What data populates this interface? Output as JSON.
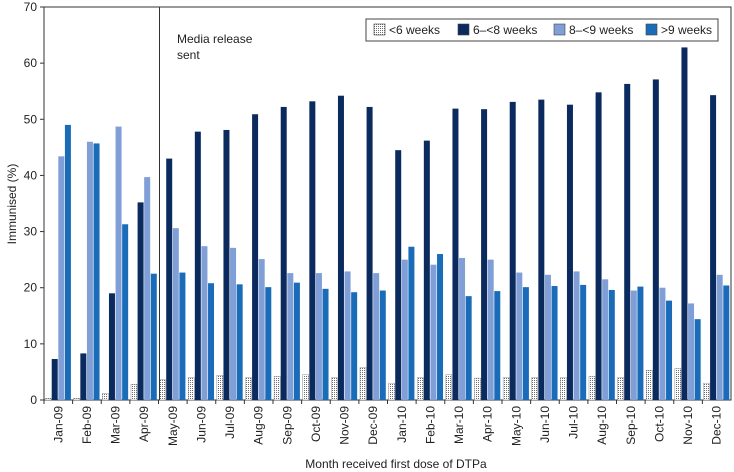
{
  "chart_data": {
    "type": "bar",
    "ylabel": "Immunised (%)",
    "xlabel": "Month received first dose of DTPa",
    "ylim": [
      0,
      70
    ],
    "yticks": [
      0,
      10,
      20,
      30,
      40,
      50,
      60,
      70
    ],
    "grid": false,
    "legend_position": "top-right",
    "categories": [
      "Jan-09",
      "Feb-09",
      "Mar-09",
      "Apr-09",
      "May-09",
      "Jun-09",
      "Jul-09",
      "Aug-09",
      "Sep-09",
      "Oct-09",
      "Nov-09",
      "Dec-09",
      "Jan-10",
      "Feb-10",
      "Mar-10",
      "Apr-10",
      "May-10",
      "Jun-10",
      "Jul-10",
      "Aug-10",
      "Sep-10",
      "Oct-10",
      "Nov-10",
      "Dec-10"
    ],
    "series": [
      {
        "name": "<6 weeks",
        "color": "#ffffff",
        "pattern": "dotted",
        "values": [
          0.3,
          0.3,
          1.2,
          2.8,
          3.6,
          4.0,
          4.4,
          4.0,
          4.2,
          4.5,
          4.0,
          5.8,
          3.0,
          4.0,
          4.5,
          3.9,
          4.0,
          4.0,
          4.0,
          4.2,
          4.0,
          5.3,
          5.6,
          3.0
        ]
      },
      {
        "name": "6–<8 weeks",
        "color": "#0b2a5e",
        "values": [
          7.3,
          8.3,
          19.0,
          35.2,
          43.0,
          47.8,
          48.1,
          50.9,
          52.2,
          53.2,
          54.2,
          52.2,
          44.5,
          46.2,
          51.9,
          51.8,
          53.1,
          53.5,
          52.6,
          54.8,
          56.3,
          57.1,
          62.8,
          54.3
        ]
      },
      {
        "name": "8–<9 weeks",
        "color": "#7f9fd6",
        "values": [
          43.4,
          46.0,
          48.7,
          39.7,
          30.6,
          27.4,
          27.1,
          25.1,
          22.6,
          22.6,
          22.9,
          22.6,
          25.0,
          24.1,
          25.3,
          25.0,
          22.7,
          22.3,
          22.9,
          21.5,
          19.5,
          20.0,
          17.2,
          22.3
        ]
      },
      {
        "name": ">9 weeks",
        "color": "#1a6cb8",
        "values": [
          49.0,
          45.7,
          31.3,
          22.5,
          22.7,
          20.8,
          20.6,
          20.1,
          20.9,
          19.8,
          19.2,
          19.5,
          27.3,
          26.0,
          18.5,
          19.4,
          20.1,
          20.3,
          20.5,
          19.6,
          20.2,
          17.7,
          14.4,
          20.4
        ]
      }
    ],
    "annotation": {
      "text_line1": "Media release",
      "text_line2": "sent",
      "at_category": "May-09"
    }
  }
}
